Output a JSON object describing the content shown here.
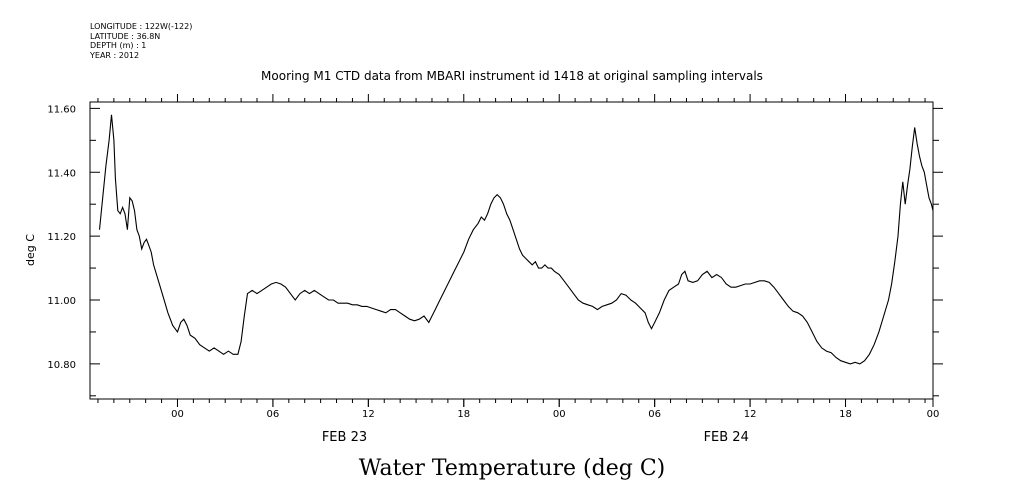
{
  "metadata": {
    "longitude": "LONGITUDE : 122W(-122)",
    "latitude": "LATITUDE : 36.8N",
    "depth": "DEPTH (m) : 1",
    "year": "YEAR : 2012"
  },
  "chart_data": {
    "type": "line",
    "title": "Mooring M1 CTD data from MBARI instrument id 1418 at original sampling intervals",
    "xlabel": "Water Temperature (deg C)",
    "ylabel": "deg C",
    "ylim": [
      10.69,
      11.62
    ],
    "xlim": [
      -5.5,
      47.5
    ],
    "x_unit": "hours from FEB 23 00:00",
    "y_ticks": [
      "10.80",
      "11.00",
      "11.20",
      "11.40",
      "11.60"
    ],
    "x_ticks": [
      {
        "x": 0,
        "label": "00"
      },
      {
        "x": 6,
        "label": "06"
      },
      {
        "x": 12,
        "label": "12"
      },
      {
        "x": 18,
        "label": "18"
      },
      {
        "x": 24,
        "label": "00"
      },
      {
        "x": 30,
        "label": "06"
      },
      {
        "x": 36,
        "label": "12"
      },
      {
        "x": 42,
        "label": "18"
      },
      {
        "x": 47.5,
        "label": "00"
      }
    ],
    "date_labels": [
      {
        "x": 10.5,
        "label": "FEB 23"
      },
      {
        "x": 34.5,
        "label": "FEB 24"
      }
    ],
    "grid": false,
    "series": [
      {
        "points": [
          [
            -4.9,
            11.22
          ],
          [
            -4.7,
            11.32
          ],
          [
            -4.5,
            11.42
          ],
          [
            -4.3,
            11.5
          ],
          [
            -4.15,
            11.58
          ],
          [
            -4.0,
            11.5
          ],
          [
            -3.9,
            11.38
          ],
          [
            -3.75,
            11.28
          ],
          [
            -3.6,
            11.27
          ],
          [
            -3.45,
            11.29
          ],
          [
            -3.3,
            11.27
          ],
          [
            -3.15,
            11.22
          ],
          [
            -3.0,
            11.32
          ],
          [
            -2.85,
            11.31
          ],
          [
            -2.7,
            11.28
          ],
          [
            -2.55,
            11.22
          ],
          [
            -2.4,
            11.2
          ],
          [
            -2.25,
            11.16
          ],
          [
            -2.1,
            11.18
          ],
          [
            -1.95,
            11.19
          ],
          [
            -1.8,
            11.17
          ],
          [
            -1.65,
            11.15
          ],
          [
            -1.5,
            11.11
          ],
          [
            -1.2,
            11.06
          ],
          [
            -0.9,
            11.01
          ],
          [
            -0.6,
            10.96
          ],
          [
            -0.3,
            10.92
          ],
          [
            0.0,
            10.9
          ],
          [
            0.2,
            10.93
          ],
          [
            0.4,
            10.94
          ],
          [
            0.6,
            10.92
          ],
          [
            0.8,
            10.89
          ],
          [
            1.1,
            10.88
          ],
          [
            1.4,
            10.86
          ],
          [
            1.7,
            10.85
          ],
          [
            2.0,
            10.84
          ],
          [
            2.3,
            10.85
          ],
          [
            2.6,
            10.84
          ],
          [
            2.9,
            10.83
          ],
          [
            3.2,
            10.84
          ],
          [
            3.5,
            10.83
          ],
          [
            3.8,
            10.83
          ],
          [
            4.0,
            10.87
          ],
          [
            4.2,
            10.95
          ],
          [
            4.4,
            11.02
          ],
          [
            4.7,
            11.03
          ],
          [
            5.0,
            11.02
          ],
          [
            5.3,
            11.03
          ],
          [
            5.6,
            11.04
          ],
          [
            5.9,
            11.05
          ],
          [
            6.2,
            11.055
          ],
          [
            6.5,
            11.05
          ],
          [
            6.8,
            11.04
          ],
          [
            7.1,
            11.02
          ],
          [
            7.4,
            11.0
          ],
          [
            7.7,
            11.02
          ],
          [
            8.0,
            11.03
          ],
          [
            8.3,
            11.02
          ],
          [
            8.6,
            11.03
          ],
          [
            8.9,
            11.02
          ],
          [
            9.2,
            11.01
          ],
          [
            9.5,
            11.0
          ],
          [
            9.8,
            11.0
          ],
          [
            10.1,
            10.99
          ],
          [
            10.4,
            10.99
          ],
          [
            10.7,
            10.99
          ],
          [
            11.0,
            10.985
          ],
          [
            11.3,
            10.985
          ],
          [
            11.6,
            10.98
          ],
          [
            11.9,
            10.98
          ],
          [
            12.2,
            10.975
          ],
          [
            12.5,
            10.97
          ],
          [
            12.8,
            10.965
          ],
          [
            13.1,
            10.96
          ],
          [
            13.4,
            10.97
          ],
          [
            13.7,
            10.97
          ],
          [
            14.0,
            10.96
          ],
          [
            14.3,
            10.95
          ],
          [
            14.6,
            10.94
          ],
          [
            14.9,
            10.935
          ],
          [
            15.2,
            10.94
          ],
          [
            15.5,
            10.95
          ],
          [
            15.8,
            10.93
          ],
          [
            16.0,
            10.95
          ],
          [
            16.2,
            10.97
          ],
          [
            16.5,
            11.0
          ],
          [
            16.8,
            11.03
          ],
          [
            17.1,
            11.06
          ],
          [
            17.4,
            11.09
          ],
          [
            17.7,
            11.12
          ],
          [
            18.0,
            11.15
          ],
          [
            18.3,
            11.19
          ],
          [
            18.6,
            11.22
          ],
          [
            18.9,
            11.24
          ],
          [
            19.1,
            11.26
          ],
          [
            19.3,
            11.25
          ],
          [
            19.5,
            11.27
          ],
          [
            19.7,
            11.3
          ],
          [
            19.9,
            11.32
          ],
          [
            20.1,
            11.33
          ],
          [
            20.3,
            11.32
          ],
          [
            20.5,
            11.3
          ],
          [
            20.7,
            11.27
          ],
          [
            20.9,
            11.25
          ],
          [
            21.1,
            11.22
          ],
          [
            21.3,
            11.19
          ],
          [
            21.5,
            11.16
          ],
          [
            21.7,
            11.14
          ],
          [
            21.9,
            11.13
          ],
          [
            22.1,
            11.12
          ],
          [
            22.3,
            11.11
          ],
          [
            22.5,
            11.12
          ],
          [
            22.7,
            11.1
          ],
          [
            22.9,
            11.1
          ],
          [
            23.1,
            11.11
          ],
          [
            23.3,
            11.1
          ],
          [
            23.5,
            11.1
          ],
          [
            23.7,
            11.09
          ],
          [
            24.0,
            11.08
          ],
          [
            24.3,
            11.06
          ],
          [
            24.6,
            11.04
          ],
          [
            24.9,
            11.02
          ],
          [
            25.2,
            11.0
          ],
          [
            25.5,
            10.99
          ],
          [
            25.8,
            10.985
          ],
          [
            26.1,
            10.98
          ],
          [
            26.4,
            10.97
          ],
          [
            26.7,
            10.98
          ],
          [
            27.0,
            10.985
          ],
          [
            27.3,
            10.99
          ],
          [
            27.6,
            11.0
          ],
          [
            27.9,
            11.02
          ],
          [
            28.2,
            11.015
          ],
          [
            28.5,
            11.0
          ],
          [
            28.8,
            10.99
          ],
          [
            29.1,
            10.975
          ],
          [
            29.4,
            10.96
          ],
          [
            29.6,
            10.93
          ],
          [
            29.8,
            10.91
          ],
          [
            30.0,
            10.93
          ],
          [
            30.3,
            10.96
          ],
          [
            30.6,
            11.0
          ],
          [
            30.9,
            11.03
          ],
          [
            31.2,
            11.04
          ],
          [
            31.5,
            11.05
          ],
          [
            31.7,
            11.08
          ],
          [
            31.9,
            11.09
          ],
          [
            32.1,
            11.06
          ],
          [
            32.4,
            11.055
          ],
          [
            32.7,
            11.06
          ],
          [
            33.0,
            11.08
          ],
          [
            33.3,
            11.09
          ],
          [
            33.6,
            11.07
          ],
          [
            33.9,
            11.08
          ],
          [
            34.2,
            11.07
          ],
          [
            34.5,
            11.05
          ],
          [
            34.8,
            11.04
          ],
          [
            35.1,
            11.04
          ],
          [
            35.4,
            11.045
          ],
          [
            35.7,
            11.05
          ],
          [
            36.0,
            11.05
          ],
          [
            36.3,
            11.055
          ],
          [
            36.6,
            11.06
          ],
          [
            36.9,
            11.06
          ],
          [
            37.2,
            11.055
          ],
          [
            37.5,
            11.04
          ],
          [
            37.8,
            11.02
          ],
          [
            38.1,
            11.0
          ],
          [
            38.4,
            10.98
          ],
          [
            38.7,
            10.965
          ],
          [
            39.0,
            10.96
          ],
          [
            39.3,
            10.95
          ],
          [
            39.6,
            10.93
          ],
          [
            39.9,
            10.9
          ],
          [
            40.2,
            10.87
          ],
          [
            40.5,
            10.85
          ],
          [
            40.8,
            10.84
          ],
          [
            41.1,
            10.835
          ],
          [
            41.4,
            10.82
          ],
          [
            41.7,
            10.81
          ],
          [
            42.0,
            10.805
          ],
          [
            42.3,
            10.8
          ],
          [
            42.6,
            10.805
          ],
          [
            42.9,
            10.8
          ],
          [
            43.2,
            10.81
          ],
          [
            43.5,
            10.83
          ],
          [
            43.8,
            10.86
          ],
          [
            44.1,
            10.9
          ],
          [
            44.4,
            10.95
          ],
          [
            44.7,
            11.0
          ],
          [
            44.9,
            11.05
          ],
          [
            45.1,
            11.12
          ],
          [
            45.3,
            11.2
          ],
          [
            45.45,
            11.3
          ],
          [
            45.6,
            11.37
          ],
          [
            45.75,
            11.3
          ],
          [
            45.9,
            11.36
          ],
          [
            46.05,
            11.41
          ],
          [
            46.2,
            11.48
          ],
          [
            46.35,
            11.54
          ],
          [
            46.5,
            11.49
          ],
          [
            46.65,
            11.45
          ],
          [
            46.8,
            11.42
          ],
          [
            46.95,
            11.4
          ],
          [
            47.1,
            11.36
          ],
          [
            47.25,
            11.32
          ],
          [
            47.4,
            11.3
          ],
          [
            47.5,
            11.28
          ]
        ]
      }
    ]
  }
}
